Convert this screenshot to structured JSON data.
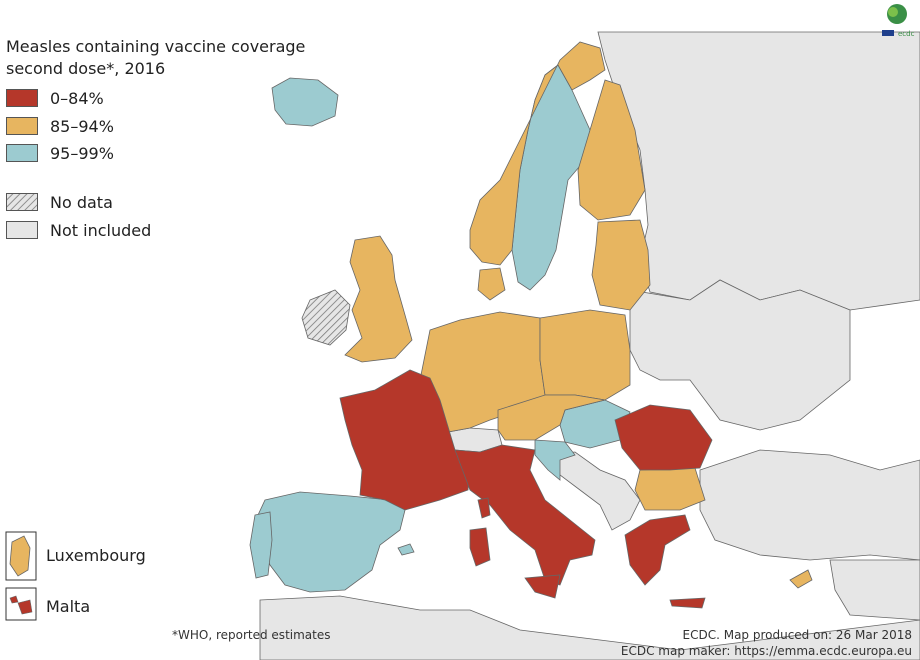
{
  "legend": {
    "title_line1": "Measles containing vaccine coverage",
    "title_line2": "second dose*, 2016",
    "items": [
      {
        "label": "0–84%",
        "color": "#b5372a"
      },
      {
        "label": "85–94%",
        "color": "#e7b560"
      },
      {
        "label": "95–99%",
        "color": "#9ccbd0"
      },
      {
        "label": "No data",
        "color": "hatch"
      },
      {
        "label": "Not included",
        "color": "#e6e6e6"
      }
    ]
  },
  "insets": [
    {
      "label": "Luxembourg",
      "color": "#e7b560"
    },
    {
      "label": "Malta",
      "color": "#b5372a"
    }
  ],
  "footnote": "*WHO, reported estimates",
  "credits": {
    "line1": "ECDC. Map produced on: 26 Mar 2018",
    "line2": "ECDC map maker: https://emma.ecdc.europa.eu"
  },
  "logo": {
    "text": "ecdc"
  },
  "colors": {
    "red": "#b5372a",
    "orange": "#e7b560",
    "blue": "#9ccbd0",
    "not_included": "#e6e6e6",
    "border": "#666666"
  }
}
